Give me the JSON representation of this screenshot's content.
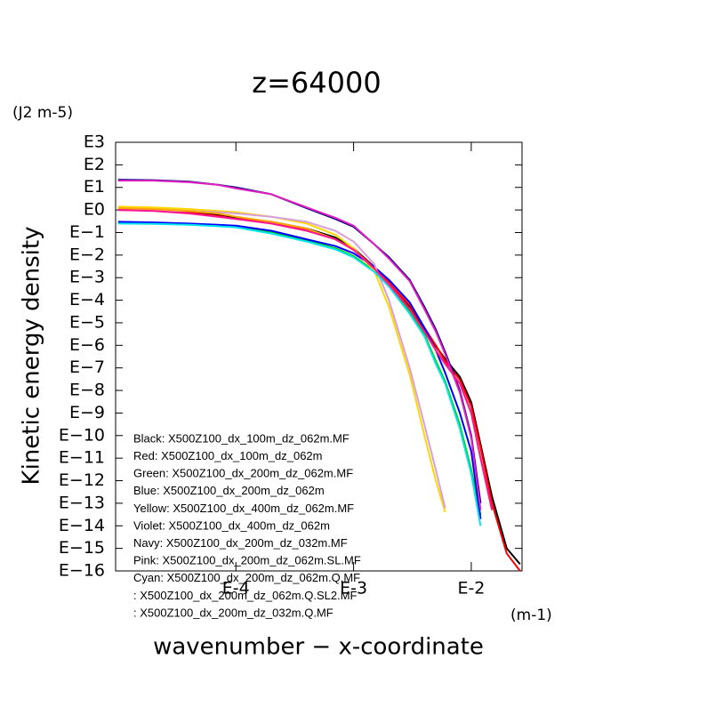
{
  "chart_data": {
    "type": "line",
    "title": "z=64000",
    "y_unit": "(J2 m-5)",
    "x_unit": "(m-1)",
    "ylabel": "Kinetic energy density",
    "xlabel": "wavenumber − x-coordinate",
    "xscale": "log",
    "yscale": "log",
    "legend": "lower left",
    "xlim": [
      9.5e-06,
      0.027
    ],
    "ylim": [
      1e-16,
      1000
    ],
    "xticks": [
      {
        "value": 0.0001,
        "label": "E-4"
      },
      {
        "value": 0.001,
        "label": "E-3"
      },
      {
        "value": 0.01,
        "label": "E-2"
      }
    ],
    "yticks": [
      {
        "value": 1000,
        "label": "E3"
      },
      {
        "value": 100,
        "label": "E2"
      },
      {
        "value": 10,
        "label": "E1"
      },
      {
        "value": 1,
        "label": "E0"
      },
      {
        "value": 0.1,
        "label": "E−1"
      },
      {
        "value": 0.01,
        "label": "E−2"
      },
      {
        "value": 0.001,
        "label": "E−3"
      },
      {
        "value": 0.0001,
        "label": "E−4"
      },
      {
        "value": 1e-05,
        "label": "E−5"
      },
      {
        "value": 1e-06,
        "label": "E−6"
      },
      {
        "value": 1e-07,
        "label": "E−7"
      },
      {
        "value": 1e-08,
        "label": "E−8"
      },
      {
        "value": 1e-09,
        "label": "E−9"
      },
      {
        "value": 1e-10,
        "label": "E−10"
      },
      {
        "value": 1e-11,
        "label": "E−11"
      },
      {
        "value": 1e-12,
        "label": "E−12"
      },
      {
        "value": 1e-13,
        "label": "E−13"
      },
      {
        "value": 1e-14,
        "label": "E−14"
      },
      {
        "value": 1e-15,
        "label": "E−15"
      },
      {
        "value": 1e-16,
        "label": "E−16"
      }
    ],
    "x": [
      1e-05,
      2e-05,
      4e-05,
      7e-05,
      0.0001,
      0.0002,
      0.0004,
      0.0007,
      0.001,
      0.0015,
      0.002,
      0.003,
      0.004,
      0.005,
      0.006,
      0.008,
      0.01,
      0.012,
      0.015,
      0.02,
      0.026
    ],
    "series": [
      {
        "name": "Black: X500Z100_dx_100m_dz_062m.MF",
        "color": "#000000",
        "values": [
          1.1,
          1.0,
          0.8,
          0.6,
          0.45,
          0.3,
          0.15,
          0.06,
          0.02,
          0.003,
          0.0006,
          5e-05,
          5e-06,
          9e-07,
          2.5e-07,
          4e-08,
          3e-09,
          4e-11,
          2e-13,
          1e-15,
          2e-16
        ]
      },
      {
        "name": "Red: X500Z100_dx_100m_dz_062m",
        "color": "#ff0000",
        "values": [
          1.0,
          0.95,
          0.75,
          0.55,
          0.4,
          0.28,
          0.14,
          0.05,
          0.018,
          0.0028,
          0.0006,
          6e-05,
          6e-06,
          1e-06,
          2e-07,
          3e-08,
          2e-09,
          3e-11,
          1e-13,
          6e-16,
          1e-16
        ]
      },
      {
        "name": "Green: X500Z100_dx_200m_dz_062m.MF",
        "color": "#00cc00",
        "values": [
          0.28,
          0.26,
          0.23,
          0.2,
          0.18,
          0.1,
          0.045,
          0.02,
          0.009,
          0.002,
          0.0005,
          3e-05,
          3e-06,
          2e-07,
          2.5e-08,
          3e-10,
          3e-12,
          3e-14,
          null,
          null,
          null
        ]
      },
      {
        "name": "Blue: X500Z100_dx_200m_dz_062m",
        "color": "#0000ff",
        "values": [
          0.3,
          0.28,
          0.25,
          0.22,
          0.2,
          0.12,
          0.05,
          0.025,
          0.012,
          0.003,
          0.0008,
          8e-05,
          6e-06,
          6e-07,
          6e-08,
          1e-09,
          2e-11,
          2e-14,
          null,
          null,
          null
        ]
      },
      {
        "name": "Yellow: X500Z100_dx_400m_dz_062m.MF",
        "color": "#ffd700",
        "values": [
          1.4,
          1.3,
          1.1,
          0.9,
          0.8,
          0.5,
          0.25,
          0.08,
          0.02,
          0.002,
          5e-05,
          5e-08,
          1e-10,
          1e-12,
          4e-14,
          null,
          null,
          null,
          null,
          null,
          null
        ]
      },
      {
        "name": "Violet: X500Z100_dx_400m_dz_062m",
        "color": "#d8a0d8",
        "values": [
          1.0,
          0.95,
          0.9,
          0.8,
          0.7,
          0.5,
          0.3,
          0.12,
          0.04,
          0.004,
          0.0001,
          1e-07,
          3e-10,
          3e-12,
          6e-14,
          null,
          null,
          null,
          null,
          null,
          null
        ]
      },
      {
        "name": "Navy: X500Z100_dx_200m_dz_032m.MF",
        "color": "#000080",
        "values": [
          22,
          21,
          18,
          13,
          10,
          5,
          1.2,
          0.4,
          0.18,
          0.03,
          0.008,
          0.0008,
          5e-05,
          5e-06,
          5e-07,
          1e-08,
          1e-10,
          1e-13,
          null,
          null,
          null
        ]
      },
      {
        "name": "Pink: X500Z100_dx_200m_dz_062m.SL.MF",
        "color": "#e020c0",
        "values": [
          20,
          20,
          17,
          13,
          9,
          5,
          1.3,
          0.45,
          0.2,
          0.03,
          0.007,
          0.0007,
          4e-05,
          4e-06,
          4e-07,
          8e-09,
          8e-11,
          5e-14,
          null,
          null,
          null
        ]
      },
      {
        "name": "Cyan: X500Z100_dx_200m_dz_062m.Q.MF",
        "color": "#00e5ee",
        "values": [
          0.25,
          0.24,
          0.22,
          0.19,
          0.17,
          0.09,
          0.04,
          0.018,
          0.008,
          0.0018,
          0.0004,
          2.5e-05,
          2.5e-06,
          1.5e-07,
          2e-08,
          2e-10,
          2e-12,
          1e-14,
          null,
          null,
          null
        ]
      },
      {
        "name": ": X500Z100_dx_200m_dz_062m.Q.SL2.MF",
        "color": "#ffa500",
        "values": [
          1.2,
          1.1,
          0.9,
          0.7,
          0.5,
          0.3,
          0.15,
          0.05,
          0.018,
          0.0025,
          0.0005,
          4e-05,
          4e-06,
          6e-07,
          1.5e-07,
          2e-08,
          1e-09,
          1e-11,
          5e-14,
          null,
          null
        ]
      },
      {
        "name": ": X500Z100_dx_200m_dz_032m.Q.MF",
        "color": "#ff1493",
        "values": [
          1.0,
          0.9,
          0.7,
          0.5,
          0.4,
          0.25,
          0.12,
          0.05,
          0.017,
          0.0025,
          0.0005,
          4e-05,
          4e-06,
          6e-07,
          1.5e-07,
          2e-08,
          1e-09,
          1e-11,
          5e-14,
          null,
          null
        ]
      }
    ]
  }
}
